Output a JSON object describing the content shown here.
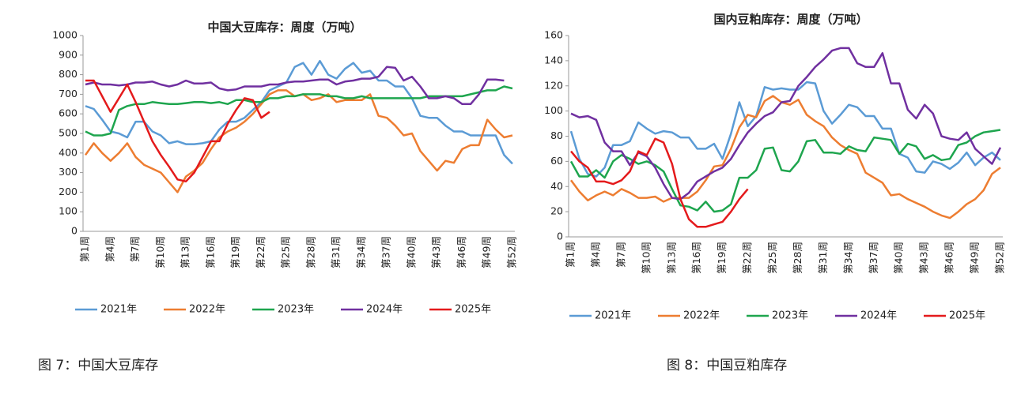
{
  "chart_data": [
    {
      "type": "line",
      "title": "中国大豆库存：周度（万吨）",
      "caption": "图 7：中国大豆库存",
      "categories": [
        "第1周",
        null,
        null,
        "第4周",
        null,
        null,
        "第7周",
        null,
        null,
        "第10周",
        null,
        null,
        "第13周",
        null,
        null,
        "第16周",
        null,
        null,
        "第19周",
        null,
        null,
        "第22周",
        null,
        null,
        "第25周",
        null,
        null,
        "第28周",
        null,
        null,
        "第31周",
        null,
        null,
        "第34周",
        null,
        null,
        "第37周",
        null,
        null,
        "第40周",
        null,
        null,
        "第43周",
        null,
        null,
        "第46周",
        null,
        null,
        "第49周",
        null,
        null,
        "第52周"
      ],
      "ylim": [
        0,
        1000
      ],
      "yticks": [
        0,
        100,
        200,
        300,
        400,
        500,
        600,
        700,
        800,
        900,
        1000
      ],
      "grid": false,
      "legend": "bottom",
      "series": [
        {
          "name": "2021年",
          "color": "#5b9bd5",
          "values": [
            640,
            625,
            570,
            510,
            500,
            480,
            560,
            560,
            510,
            490,
            450,
            460,
            445,
            445,
            450,
            460,
            520,
            560,
            560,
            580,
            620,
            660,
            720,
            740,
            760,
            840,
            860,
            800,
            870,
            800,
            780,
            830,
            860,
            810,
            820,
            770,
            770,
            740,
            740,
            680,
            590,
            580,
            580,
            540,
            510,
            510,
            490,
            490,
            490,
            490,
            390,
            345
          ]
        },
        {
          "name": "2022年",
          "color": "#ed7d31",
          "values": [
            390,
            450,
            400,
            360,
            400,
            450,
            380,
            340,
            320,
            300,
            250,
            200,
            280,
            310,
            350,
            420,
            480,
            510,
            530,
            560,
            600,
            650,
            700,
            720,
            720,
            690,
            700,
            670,
            680,
            700,
            660,
            670,
            670,
            670,
            700,
            590,
            580,
            540,
            490,
            500,
            410,
            360,
            310,
            360,
            350,
            420,
            440,
            440,
            570,
            520,
            480,
            490
          ]
        },
        {
          "name": "2023年",
          "color": "#1ea54e",
          "values": [
            510,
            490,
            490,
            500,
            620,
            640,
            650,
            650,
            660,
            655,
            650,
            650,
            655,
            660,
            660,
            655,
            660,
            650,
            670,
            670,
            660,
            660,
            680,
            680,
            690,
            690,
            700,
            700,
            700,
            690,
            690,
            680,
            680,
            690,
            680,
            680,
            680,
            680,
            680,
            680,
            680,
            690,
            690,
            690,
            690,
            690,
            700,
            710,
            720,
            720,
            740,
            730
          ]
        },
        {
          "name": "2024年",
          "color": "#7030a0",
          "values": [
            750,
            760,
            750,
            750,
            745,
            750,
            760,
            760,
            765,
            750,
            740,
            750,
            770,
            755,
            755,
            760,
            730,
            720,
            725,
            740,
            740,
            740,
            750,
            750,
            760,
            765,
            765,
            770,
            775,
            775,
            750,
            765,
            770,
            780,
            780,
            790,
            840,
            835,
            770,
            790,
            740,
            680,
            680,
            690,
            680,
            650,
            650,
            700,
            775,
            775,
            770,
            null
          ]
        },
        {
          "name": "2025年",
          "color": "#e41a1c",
          "values": [
            770,
            770,
            690,
            610,
            680,
            750,
            660,
            560,
            460,
            390,
            330,
            265,
            255,
            300,
            380,
            460,
            460,
            550,
            620,
            680,
            670,
            580,
            610,
            null,
            null,
            null,
            null,
            null,
            null,
            null,
            null,
            null,
            null,
            null,
            null,
            null,
            null,
            null,
            null,
            null,
            null,
            null,
            null,
            null,
            null,
            null,
            null,
            null,
            null,
            null,
            null,
            null
          ]
        }
      ]
    },
    {
      "type": "line",
      "title": "国内豆粕库存：周度（万吨）",
      "caption": "图 8：中国豆粕库存",
      "categories": [
        "第1周",
        null,
        null,
        "第4周",
        null,
        null,
        "第7周",
        null,
        null,
        "第10周",
        null,
        null,
        "第13周",
        null,
        null,
        "第16周",
        null,
        null,
        "第19周",
        null,
        null,
        "第22周",
        null,
        null,
        "第25周",
        null,
        null,
        "第28周",
        null,
        null,
        "第31周",
        null,
        null,
        "第34周",
        null,
        null,
        "第37周",
        null,
        null,
        "第40周",
        null,
        null,
        "第43周",
        null,
        null,
        "第46周",
        null,
        null,
        "第49周",
        null,
        null,
        "第52周"
      ],
      "ylim": [
        0,
        160
      ],
      "yticks": [
        0,
        20,
        40,
        60,
        80,
        100,
        120,
        140,
        160
      ],
      "grid": false,
      "legend": "bottom",
      "series": [
        {
          "name": "2021年",
          "color": "#5b9bd5",
          "values": [
            84,
            62,
            50,
            48,
            55,
            73,
            73,
            76,
            91,
            86,
            82,
            84,
            83,
            79,
            79,
            70,
            70,
            74,
            62,
            82,
            107,
            88,
            96,
            119,
            117,
            118,
            117,
            117,
            123,
            122,
            100,
            90,
            97,
            105,
            103,
            96,
            96,
            86,
            86,
            66,
            63,
            52,
            51,
            60,
            58,
            54,
            59,
            67,
            57,
            63,
            67,
            61
          ]
        },
        {
          "name": "2022年",
          "color": "#ed7d31",
          "values": [
            45,
            36,
            29,
            33,
            36,
            33,
            38,
            35,
            31,
            31,
            32,
            28,
            31,
            31,
            31,
            36,
            45,
            56,
            57,
            70,
            87,
            97,
            95,
            108,
            112,
            107,
            105,
            109,
            97,
            92,
            88,
            79,
            73,
            69,
            66,
            51,
            47,
            43,
            33,
            34,
            30,
            27,
            24,
            20,
            17,
            15,
            20,
            26,
            30,
            37,
            50,
            55
          ]
        },
        {
          "name": "2023年",
          "color": "#1ea54e",
          "values": [
            60,
            48,
            48,
            53,
            47,
            60,
            65,
            62,
            58,
            60,
            57,
            52,
            38,
            25,
            24,
            21,
            28,
            20,
            21,
            26,
            47,
            47,
            53,
            70,
            71,
            53,
            52,
            60,
            76,
            77,
            67,
            67,
            66,
            72,
            69,
            68,
            79,
            78,
            77,
            66,
            74,
            72,
            62,
            65,
            61,
            62,
            73,
            75,
            80,
            83,
            84,
            85
          ]
        },
        {
          "name": "2024年",
          "color": "#7030a0",
          "values": [
            98,
            95,
            96,
            93,
            75,
            68,
            68,
            57,
            67,
            64,
            55,
            42,
            31,
            30,
            35,
            44,
            48,
            52,
            55,
            62,
            73,
            83,
            90,
            96,
            99,
            107,
            108,
            120,
            127,
            135,
            141,
            148,
            150,
            150,
            138,
            135,
            135,
            146,
            122,
            122,
            101,
            94,
            105,
            98,
            80,
            78,
            77,
            83,
            70,
            64,
            58,
            71
          ]
        },
        {
          "name": "2025年",
          "color": "#e41a1c",
          "values": [
            68,
            60,
            55,
            44,
            44,
            42,
            45,
            52,
            68,
            65,
            78,
            75,
            58,
            30,
            14,
            8,
            8,
            10,
            12,
            20,
            30,
            38,
            null,
            null,
            null,
            null,
            null,
            null,
            null,
            null,
            null,
            null,
            null,
            null,
            null,
            null,
            null,
            null,
            null,
            null,
            null,
            null,
            null,
            null,
            null,
            null,
            null,
            null,
            null,
            null,
            null,
            null
          ]
        }
      ]
    }
  ]
}
